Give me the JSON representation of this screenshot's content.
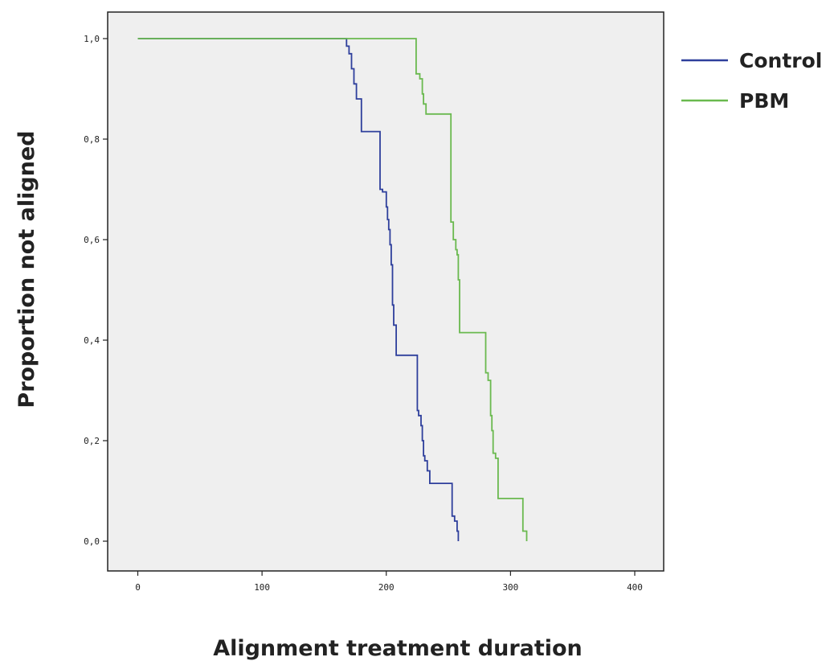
{
  "chart_data": {
    "type": "line",
    "subtype": "step (Kaplan-Meier survival curve)",
    "title": "",
    "xlabel": "Alignment treatment duration",
    "ylabel": "Proportion not aligned",
    "xlim": [
      -10,
      420
    ],
    "ylim": [
      -0.06,
      1.06
    ],
    "xticks": [
      0,
      100,
      200,
      300,
      400
    ],
    "xtick_labels": [
      "0",
      "100",
      "200",
      "300",
      "400"
    ],
    "yticks": [
      0.0,
      0.2,
      0.4,
      0.6,
      0.8,
      1.0
    ],
    "ytick_labels": [
      "0,0",
      "0,2",
      "0,4",
      "0,6",
      "0,8",
      "1,0"
    ],
    "grid": false,
    "background": "#efefef",
    "legend_position": "right",
    "series": [
      {
        "name": "Control",
        "color": "#2e3f9c",
        "x": [
          0,
          168,
          170,
          172,
          174,
          176,
          180,
          195,
          197,
          200,
          201,
          202,
          203,
          204,
          205,
          206,
          208,
          225,
          226,
          228,
          229,
          230,
          231,
          233,
          235,
          253,
          255,
          257,
          258
        ],
        "y": [
          1.0,
          0.985,
          0.97,
          0.94,
          0.91,
          0.88,
          0.815,
          0.7,
          0.695,
          0.665,
          0.64,
          0.62,
          0.59,
          0.55,
          0.47,
          0.43,
          0.37,
          0.26,
          0.25,
          0.23,
          0.2,
          0.17,
          0.16,
          0.14,
          0.115,
          0.05,
          0.04,
          0.02,
          0.0
        ]
      },
      {
        "name": "PBM",
        "color": "#6ab94f",
        "x": [
          0,
          224,
          227,
          229,
          230,
          232,
          252,
          254,
          256,
          257,
          258,
          259,
          260,
          280,
          282,
          284,
          285,
          286,
          288,
          290,
          310,
          313
        ],
        "y": [
          1.0,
          0.93,
          0.92,
          0.89,
          0.87,
          0.85,
          0.635,
          0.6,
          0.58,
          0.57,
          0.52,
          0.415,
          0.415,
          0.335,
          0.32,
          0.25,
          0.22,
          0.175,
          0.165,
          0.085,
          0.02,
          0.0
        ]
      }
    ]
  }
}
